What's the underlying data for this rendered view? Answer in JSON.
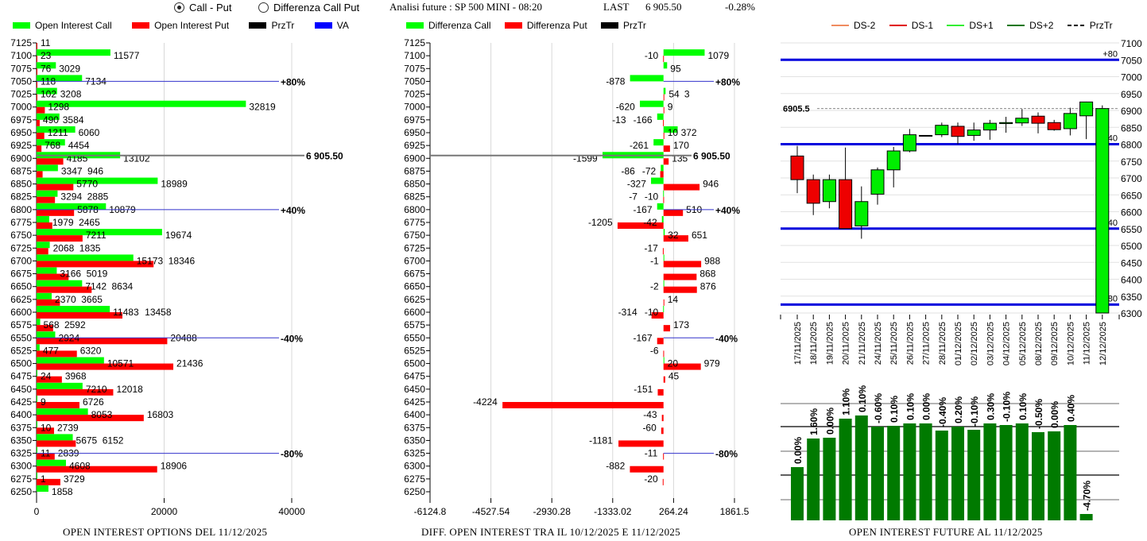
{
  "header": {
    "mode_options": [
      {
        "label": "Call - Put",
        "selected": true
      },
      {
        "label": "Differenza Call Put",
        "selected": false
      }
    ],
    "analysis_label": "Analisi future : SP 500 MINI - 08:20",
    "last_label": "LAST",
    "last_value": "6 905.50",
    "change": "-0.28%"
  },
  "colors": {
    "call": "#00ff00",
    "put": "#ff0000",
    "prztr": "#000000",
    "va": "#0000ff",
    "ds_minus2": "#f08c60",
    "ds_minus1": "#e00000",
    "ds_plus1": "#33ee33",
    "ds_plus2": "#117711",
    "oi_future_bar": "#007a00"
  },
  "chart_data": [
    {
      "type": "bar",
      "orientation": "horizontal",
      "title": "OPEN INTEREST OPTIONS DEL 11/12/2025",
      "legend": [
        "Open Interest Call",
        "Open Interest Put",
        "PrzTr",
        "VA"
      ],
      "legend_placement": "top",
      "xlim": [
        0,
        40000
      ],
      "xticks": [
        "0",
        "20000",
        "40000"
      ],
      "categories": [
        7125,
        7100,
        7075,
        7050,
        7025,
        7000,
        6975,
        6950,
        6925,
        6900,
        6875,
        6850,
        6825,
        6800,
        6775,
        6750,
        6725,
        6700,
        6675,
        6650,
        6625,
        6600,
        6575,
        6550,
        6525,
        6500,
        6475,
        6450,
        6425,
        6400,
        6375,
        6350,
        6325,
        6300,
        6275,
        6250
      ],
      "series": [
        {
          "name": "Open Interest Call",
          "values": [
            null,
            11577,
            3029,
            7134,
            3208,
            32819,
            3584,
            6060,
            4454,
            13102,
            3347,
            18989,
            3294,
            10879,
            1979,
            19674,
            2068,
            15173,
            3166,
            7142,
            2370,
            11483,
            568,
            2924,
            477,
            10571,
            24,
            7210,
            9,
            8053,
            10,
            5675,
            11,
            4608,
            1,
            1858
          ]
        },
        {
          "name": "Open Interest Put",
          "values": [
            11,
            23,
            76,
            118,
            102,
            1298,
            490,
            1211,
            768,
            4185,
            946,
            5770,
            2885,
            5878,
            2465,
            7211,
            1835,
            18346,
            5019,
            8634,
            3665,
            13458,
            2592,
            20488,
            6320,
            21436,
            3968,
            12018,
            6726,
            16803,
            2739,
            6152,
            2839,
            18906,
            3729,
            null
          ]
        }
      ],
      "price_line": {
        "value": 6905.5,
        "label": "6 905.50"
      },
      "va_lines": [
        {
          "strike": 7050,
          "label": "+80%"
        },
        {
          "strike": 6800,
          "label": "+40%"
        },
        {
          "strike": 6550,
          "label": "-40%"
        },
        {
          "strike": 6325,
          "label": "-80%"
        }
      ],
      "grid": true
    },
    {
      "type": "bar",
      "orientation": "horizontal",
      "title": "DIFF. OPEN INTEREST TRA IL 10/12/2025 E 11/12/2025",
      "legend": [
        "Differenza Call",
        "Differenza Put",
        "PrzTr"
      ],
      "legend_placement": "top",
      "xlim": [
        -6124.8,
        1861.5
      ],
      "xticks": [
        "-6124.8",
        "-4527.54",
        "-2930.28",
        "-1333.02",
        "264.24",
        "1861.5"
      ],
      "categories": [
        7125,
        7100,
        7075,
        7050,
        7025,
        7000,
        6975,
        6950,
        6925,
        6900,
        6875,
        6850,
        6825,
        6800,
        6775,
        6750,
        6725,
        6700,
        6675,
        6650,
        6625,
        6600,
        6575,
        6550,
        6525,
        6500,
        6475,
        6450,
        6425,
        6400,
        6375,
        6350,
        6325,
        6300,
        6275,
        6250
      ],
      "series": [
        {
          "name": "Differenza Call",
          "values": [
            null,
            1079,
            95,
            -878,
            54,
            -620,
            -166,
            372,
            -261,
            -1599,
            -72,
            -327,
            -10,
            -167,
            -42,
            32,
            null,
            -1,
            null,
            -2,
            null,
            -10,
            null,
            null,
            null,
            20,
            null,
            null,
            null,
            null,
            null,
            null,
            null,
            null,
            null,
            null
          ]
        },
        {
          "name": "Differenza Put",
          "values": [
            null,
            -10,
            null,
            null,
            3,
            9,
            -13,
            10,
            170,
            135,
            -86,
            946,
            -7,
            510,
            -1205,
            651,
            -17,
            988,
            868,
            876,
            14,
            -314,
            173,
            -167,
            -6,
            979,
            45,
            -151,
            -4224,
            -43,
            -60,
            -1181,
            -11,
            -882,
            -20,
            null
          ]
        }
      ],
      "price_line": {
        "value": 6905.5,
        "label": "6 905.50"
      },
      "va_lines": [
        {
          "strike": 7050,
          "label": "+80%"
        },
        {
          "strike": 6800,
          "label": "+40%"
        },
        {
          "strike": 6550,
          "label": "-40%"
        },
        {
          "strike": 6325,
          "label": "-80%"
        }
      ],
      "grid": true
    },
    {
      "type": "candlestick",
      "legend": [
        "DS-2",
        "DS-1",
        "DS+1",
        "DS+2",
        "PrzTr"
      ],
      "legend_placement": "top",
      "ylim": [
        6300,
        7100
      ],
      "yticks": [
        "7100",
        "7050",
        "7000",
        "6950",
        "6900",
        "6850",
        "6800",
        "6750",
        "6700",
        "6650",
        "6600",
        "6550",
        "6500",
        "6450",
        "6400",
        "6350",
        "6300"
      ],
      "y_axis_side": "right",
      "dates": [
        "17/11/2025",
        "18/11/2025",
        "19/11/2025",
        "20/11/2025",
        "21/11/2025",
        "24/11/2025",
        "25/11/2025",
        "26/11/2025",
        "27/11/2025",
        "28/11/2025",
        "01/12/2025",
        "02/12/2025",
        "03/12/2025",
        "04/12/2025",
        "05/12/2025",
        "08/12/2025",
        "09/12/2025",
        "10/12/2025",
        "11/12/2025",
        "12/12/2025"
      ],
      "ohlc": [
        [
          6765,
          6795,
          6655,
          6695
        ],
        [
          6695,
          6710,
          6590,
          6625
        ],
        [
          6630,
          6710,
          6610,
          6695
        ],
        [
          6695,
          6790,
          6550,
          6550
        ],
        [
          6558,
          6675,
          6520,
          6630
        ],
        [
          6652,
          6731,
          6621,
          6724
        ],
        [
          6724,
          6792,
          6672,
          6780
        ],
        [
          6780,
          6845,
          6776,
          6828
        ],
        [
          6826,
          6826,
          6826,
          6826
        ],
        [
          6828,
          6864,
          6821,
          6856
        ],
        [
          6853,
          6864,
          6800,
          6823
        ],
        [
          6826,
          6864,
          6810,
          6842
        ],
        [
          6842,
          6872,
          6813,
          6862
        ],
        [
          6861,
          6881,
          6834,
          6864
        ],
        [
          6863,
          6904,
          6854,
          6877
        ],
        [
          6883,
          6894,
          6832,
          6862
        ],
        [
          6864,
          6872,
          6840,
          6843
        ],
        [
          6846,
          6908,
          6826,
          6891
        ],
        [
          6884,
          6926,
          6815,
          6925
        ],
        [
          6300,
          6915,
          6300,
          6905.5
        ]
      ],
      "price_line": {
        "value": 6905.5,
        "label": "6905.5"
      },
      "levels": [
        {
          "value": 7050,
          "label": "+80"
        },
        {
          "value": 6800,
          "label": "+40"
        },
        {
          "value": 6550,
          "label": "-40"
        },
        {
          "value": 6325,
          "label": "-80"
        }
      ],
      "grid": true
    },
    {
      "type": "bar",
      "title": "OPEN INTEREST FUTURE AL 11/12/2025",
      "relative_values": [
        67,
        103,
        104,
        128,
        132,
        118,
        119,
        122,
        122,
        113,
        118,
        114,
        122,
        120,
        122,
        111,
        112,
        120,
        8
      ],
      "data_labels": [
        "0.00%",
        "1.60%",
        "0.00%",
        "1.10%",
        "0.10%",
        "-0.60%",
        "0.10%",
        "0.10%",
        "0.00%",
        "-0.40%",
        "0.20%",
        "-0.10%",
        "0.30%",
        "-0.10%",
        "0.10%",
        "-0.50%",
        "0.00%",
        "0.40%",
        "-4.70%"
      ],
      "grid": true
    }
  ]
}
